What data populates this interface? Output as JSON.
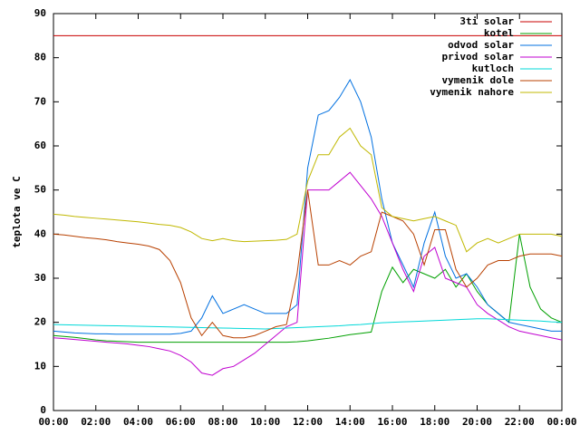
{
  "chart_data": {
    "type": "line",
    "y_label": "teplota ve C",
    "x": [
      0,
      0.5,
      1,
      1.5,
      2,
      2.5,
      3,
      3.5,
      4,
      4.5,
      5,
      5.5,
      6,
      6.5,
      7,
      7.5,
      8,
      8.5,
      9,
      9.5,
      10,
      10.5,
      11,
      11.5,
      12,
      12.5,
      13,
      13.5,
      14,
      14.5,
      15,
      15.5,
      16,
      16.5,
      17,
      17.5,
      18,
      18.5,
      19,
      19.5,
      20,
      20.5,
      21,
      21.5,
      22,
      22.5,
      23,
      23.5,
      24
    ],
    "xlim": [
      0,
      24
    ],
    "xticks": [
      {
        "value": 0,
        "label": "00:00"
      },
      {
        "value": 2,
        "label": "02:00"
      },
      {
        "value": 4,
        "label": "04:00"
      },
      {
        "value": 6,
        "label": "06:00"
      },
      {
        "value": 8,
        "label": "08:00"
      },
      {
        "value": 10,
        "label": "10:00"
      },
      {
        "value": 12,
        "label": "12:00"
      },
      {
        "value": 14,
        "label": "14:00"
      },
      {
        "value": 16,
        "label": "16:00"
      },
      {
        "value": 18,
        "label": "18:00"
      },
      {
        "value": 20,
        "label": "20:00"
      },
      {
        "value": 22,
        "label": "22:00"
      },
      {
        "value": 24,
        "label": "00:00"
      }
    ],
    "ylim": [
      0,
      90
    ],
    "yticks": [
      0,
      10,
      20,
      30,
      40,
      50,
      60,
      70,
      80,
      90
    ],
    "legend": "top-right",
    "series": [
      {
        "name": "3ti solar",
        "color": "#c80000",
        "values": [
          85,
          85,
          85,
          85,
          85,
          85,
          85,
          85,
          85,
          85,
          85,
          85,
          85,
          85,
          85,
          85,
          85,
          85,
          85,
          85,
          85,
          85,
          85,
          85,
          85,
          85,
          85,
          85,
          85,
          85,
          85,
          85,
          85,
          85,
          85,
          85,
          85,
          85,
          85,
          85,
          85,
          85,
          85,
          85,
          85,
          85,
          85,
          85,
          85
        ]
      },
      {
        "name": "kotel",
        "color": "#00a000",
        "values": [
          17,
          16.8,
          16.6,
          16.3,
          16,
          15.8,
          15.7,
          15.6,
          15.5,
          15.5,
          15.5,
          15.5,
          15.5,
          15.5,
          15.5,
          15.5,
          15.5,
          15.5,
          15.5,
          15.5,
          15.5,
          15.5,
          15.5,
          15.6,
          15.8,
          16.1,
          16.4,
          16.8,
          17.2,
          17.5,
          17.8,
          27,
          32.5,
          29,
          32,
          31,
          30,
          32,
          28,
          31,
          27,
          24,
          22,
          20,
          40,
          28,
          23,
          21,
          20
        ]
      },
      {
        "name": "odvod solar",
        "color": "#0070e0",
        "values": [
          18,
          17.8,
          17.6,
          17.5,
          17.4,
          17.4,
          17.3,
          17.3,
          17.3,
          17.3,
          17.3,
          17.3,
          17.5,
          18,
          21,
          26,
          22,
          23,
          24,
          23,
          22,
          22,
          22,
          24,
          55,
          67,
          68,
          71,
          75,
          70,
          62,
          48,
          38,
          33,
          28,
          38,
          45,
          35,
          30,
          31,
          28,
          24,
          22,
          20,
          19.5,
          19,
          18.5,
          18,
          18
        ]
      },
      {
        "name": "privod solar",
        "color": "#c000d0",
        "values": [
          16.5,
          16.3,
          16.1,
          15.9,
          15.7,
          15.5,
          15.3,
          15.1,
          14.8,
          14.5,
          14,
          13.5,
          12.5,
          11,
          8.5,
          8,
          9.5,
          10,
          11.5,
          13,
          15,
          17,
          19,
          20,
          50,
          50,
          50,
          52,
          54,
          51,
          48,
          44,
          38,
          32,
          27,
          35,
          37,
          30,
          29,
          28,
          24,
          22,
          20.5,
          19,
          18,
          17.5,
          17,
          16.5,
          16
        ]
      },
      {
        "name": "kutloch",
        "color": "#00d8d8",
        "values": [
          19.5,
          19.45,
          19.4,
          19.35,
          19.3,
          19.25,
          19.2,
          19.15,
          19.1,
          19.05,
          19,
          18.95,
          18.9,
          18.85,
          18.8,
          18.75,
          18.7,
          18.65,
          18.6,
          18.55,
          18.5,
          18.6,
          18.7,
          18.8,
          18.9,
          19,
          19.1,
          19.2,
          19.4,
          19.5,
          19.7,
          19.9,
          20,
          20.1,
          20.2,
          20.3,
          20.4,
          20.5,
          20.6,
          20.7,
          20.8,
          20.8,
          20.7,
          20.6,
          20.5,
          20.4,
          20.3,
          20.1,
          20
        ]
      },
      {
        "name": "vymenik dole",
        "color": "#b84000",
        "values": [
          40,
          39.8,
          39.5,
          39.2,
          39,
          38.7,
          38.3,
          38,
          37.7,
          37.3,
          36.5,
          34,
          29,
          21,
          17,
          20,
          17,
          16.5,
          16.5,
          17,
          18,
          19,
          19.5,
          31,
          50,
          33,
          33,
          34,
          33,
          35,
          36,
          45,
          44,
          43,
          40,
          33,
          41,
          41,
          32,
          28,
          30,
          33,
          34,
          34,
          35,
          35.5,
          35.5,
          35.5,
          35
        ]
      },
      {
        "name": "vymenik nahore",
        "color": "#c0b800",
        "values": [
          44.5,
          44.3,
          44,
          43.8,
          43.6,
          43.4,
          43.2,
          43,
          42.8,
          42.5,
          42.2,
          42,
          41.5,
          40.5,
          39,
          38.5,
          39,
          38.5,
          38.3,
          38.4,
          38.5,
          38.6,
          38.8,
          40,
          52,
          58,
          58,
          62,
          64,
          60,
          58,
          46,
          44,
          43.5,
          43,
          43.5,
          44,
          43,
          42,
          36,
          38,
          39,
          38,
          39,
          40,
          40,
          40,
          40,
          39.5
        ]
      }
    ]
  }
}
